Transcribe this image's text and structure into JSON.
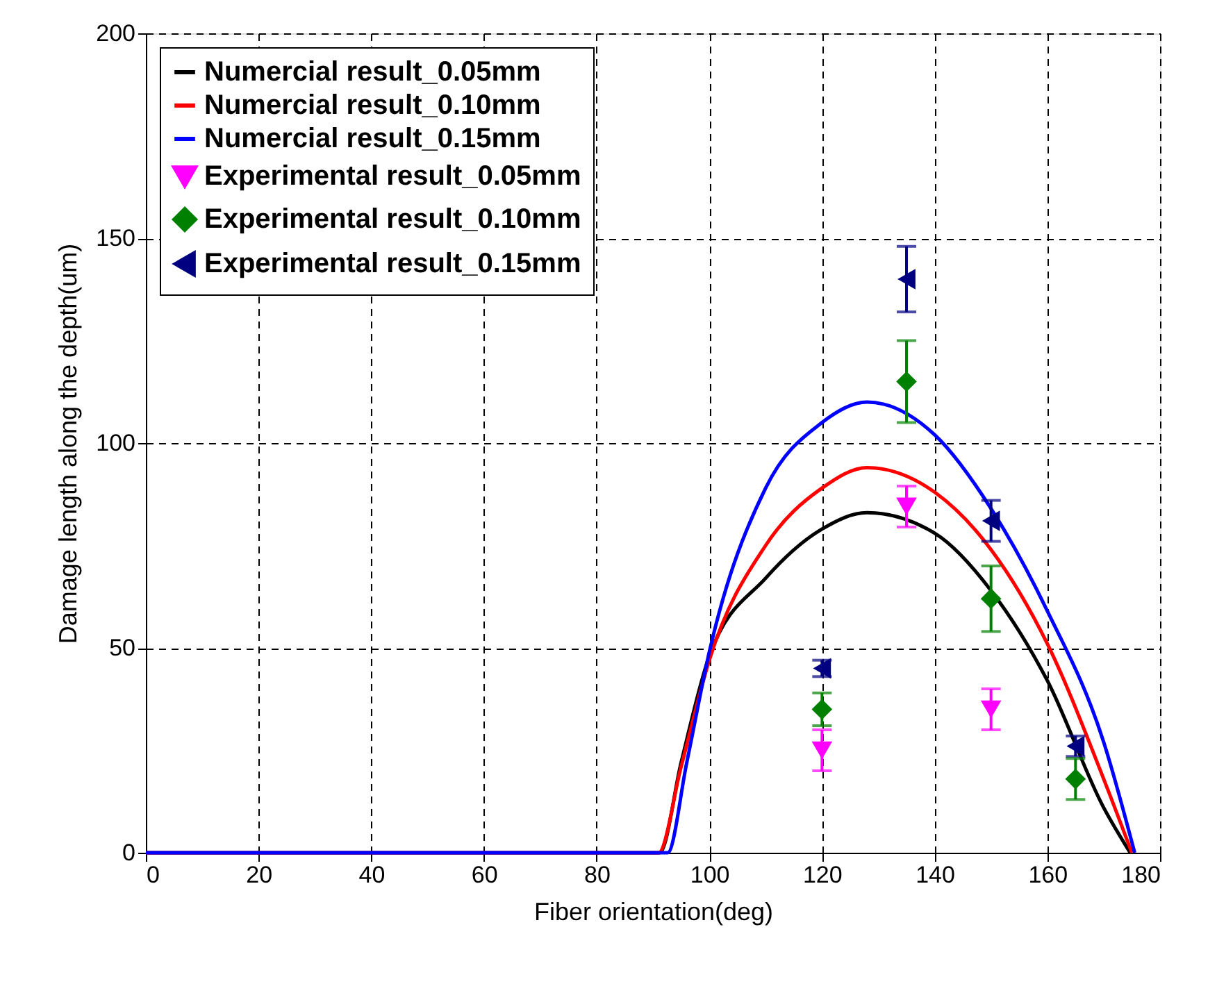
{
  "chart_data": {
    "type": "line",
    "xlabel": "Fiber orientation(deg)",
    "ylabel": "Damage length along the depth(um)",
    "xlim": [
      0,
      180
    ],
    "xticks": [
      0,
      20,
      40,
      60,
      80,
      100,
      120,
      140,
      160,
      180
    ],
    "ylim": [
      0,
      200
    ],
    "yticks": [
      0,
      50,
      100,
      150,
      200
    ],
    "grid": true,
    "legend": "top left",
    "line_style": "solid",
    "series": [
      {
        "name": "Numercial result_0.05mm",
        "color": "#000000",
        "x": [
          0,
          91.2,
          95,
          100,
          110,
          120,
          128,
          140,
          150,
          160,
          170,
          174.7
        ],
        "values": [
          0,
          0,
          22,
          48,
          67,
          79,
          83,
          78,
          64,
          42,
          11,
          0
        ]
      },
      {
        "name": "Numercial result_0.10mm",
        "color": "#ff0000",
        "x": [
          0,
          91,
          95,
          100,
          110,
          120,
          128,
          140,
          150,
          160,
          170,
          175
        ],
        "values": [
          0,
          0,
          21,
          47,
          75,
          89,
          94,
          88,
          74,
          51,
          18,
          0
        ]
      },
      {
        "name": "Numercial result_0.15mm",
        "color": "#0000ff",
        "x": [
          0,
          92.6,
          96,
          100,
          110,
          120,
          128,
          140,
          150,
          160,
          170,
          175.5
        ],
        "values": [
          0,
          0,
          22,
          49,
          89,
          105,
          110,
          102,
          84,
          59,
          27,
          0
        ]
      },
      {
        "name": "Experimental result_0.05mm",
        "type": "scatter",
        "marker": "triangle-down",
        "color": "#ff00ff",
        "x": [
          120,
          135,
          150
        ],
        "values": [
          25,
          84.5,
          35
        ],
        "errors": [
          5,
          5,
          5
        ]
      },
      {
        "name": "Experimental result_0.10mm",
        "type": "scatter",
        "marker": "diamond",
        "color": "#008000",
        "x": [
          120,
          135,
          150,
          165
        ],
        "values": [
          35,
          115,
          62,
          18
        ],
        "errors": [
          4,
          10,
          8,
          5
        ]
      },
      {
        "name": "Experimental result_0.15mm",
        "type": "scatter",
        "marker": "triangle-left",
        "color": "#000080",
        "x": [
          120,
          135,
          150,
          165
        ],
        "values": [
          45,
          140,
          81,
          26
        ],
        "errors": [
          2,
          8,
          5,
          2.5
        ]
      }
    ]
  }
}
